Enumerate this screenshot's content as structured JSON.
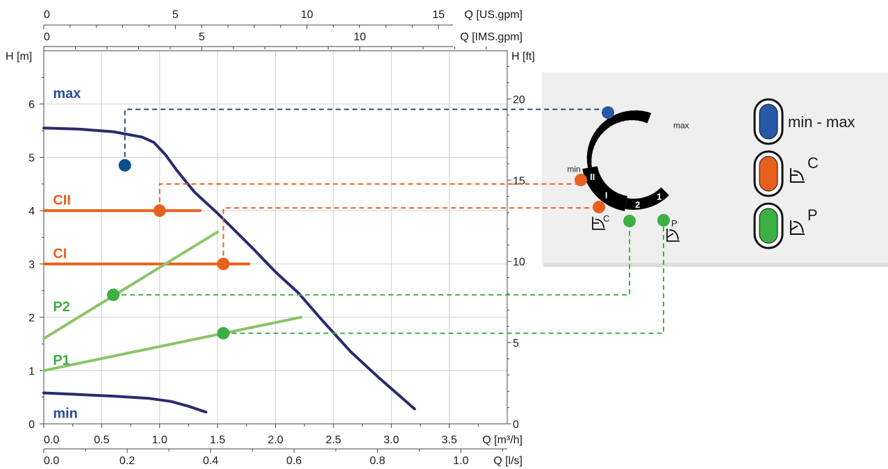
{
  "chart_data": {
    "type": "line",
    "axes": {
      "x_top1": {
        "label": "Q [US.gpm]",
        "ticks": [
          "0",
          "5",
          "10",
          "15"
        ]
      },
      "x_top2": {
        "label": "Q [IMS.gpm]",
        "ticks": [
          "0",
          "5",
          "10"
        ]
      },
      "x_bottom1": {
        "label": "Q [m³/h]",
        "ticks": [
          "0.0",
          "0.5",
          "1.0",
          "1.5",
          "2.0",
          "2.5",
          "3.0",
          "3.5"
        ],
        "range": [
          0,
          4
        ]
      },
      "x_bottom2": {
        "label": "Q [l/s]",
        "ticks": [
          "0.0",
          "0.2",
          "0.4",
          "0.6",
          "0.8",
          "1.0"
        ]
      },
      "y_left": {
        "label": "H [m]",
        "ticks": [
          "0",
          "1",
          "2",
          "3",
          "4",
          "5",
          "6"
        ],
        "range": [
          0,
          7
        ]
      },
      "y_right": {
        "label": "H [ft]",
        "ticks": [
          "0",
          "5",
          "10",
          "15",
          "20"
        ]
      }
    },
    "grid": true,
    "series": [
      {
        "name": "max",
        "color": "#2a2a6e",
        "x": [
          0,
          0.3,
          0.6,
          0.85,
          0.95,
          1.05,
          1.15,
          1.3,
          1.5,
          1.8,
          2.0,
          2.2,
          2.4,
          2.65,
          2.9,
          3.2
        ],
        "y": [
          5.55,
          5.53,
          5.48,
          5.38,
          5.28,
          5.05,
          4.75,
          4.35,
          3.95,
          3.3,
          2.85,
          2.45,
          1.95,
          1.35,
          0.85,
          0.28
        ]
      },
      {
        "name": "min",
        "color": "#2a2a6e",
        "x": [
          0,
          0.3,
          0.6,
          0.9,
          1.1,
          1.25,
          1.4
        ],
        "y": [
          0.58,
          0.55,
          0.52,
          0.48,
          0.42,
          0.33,
          0.22
        ]
      },
      {
        "name": "CII",
        "color": "#e8611c",
        "x": [
          0,
          1.35
        ],
        "y": [
          4.0,
          4.0
        ]
      },
      {
        "name": "CI",
        "color": "#e8611c",
        "x": [
          0,
          1.77
        ],
        "y": [
          3.0,
          3.0
        ]
      },
      {
        "name": "P2",
        "color": "#8cc46a",
        "x": [
          0,
          1.5
        ],
        "y": [
          1.6,
          3.6
        ]
      },
      {
        "name": "P1",
        "color": "#8cc46a",
        "x": [
          0,
          2.22
        ],
        "y": [
          1.0,
          2.0
        ]
      }
    ],
    "markers": [
      {
        "series": "max",
        "x": 0.7,
        "y": 4.85,
        "color": "#0d4f8b"
      },
      {
        "series": "CII",
        "x": 1.0,
        "y": 4.0,
        "color": "#e8611c"
      },
      {
        "series": "CI",
        "x": 1.55,
        "y": 3.0,
        "color": "#e8611c"
      },
      {
        "series": "P2",
        "x": 0.6,
        "y": 2.42,
        "color": "#3cb043"
      },
      {
        "series": "P1",
        "x": 1.55,
        "y": 1.7,
        "color": "#3cb043"
      }
    ],
    "dashes": [
      {
        "series": "max",
        "x0": 0.7,
        "y0": 4.85,
        "yLevel": 5.9,
        "color": "#1f4e79"
      },
      {
        "series": "CII",
        "x0": 1.0,
        "y0": 4.0,
        "yLevel": 4.5,
        "color": "#e8611c"
      },
      {
        "series": "CI",
        "x0": 1.55,
        "y0": 3.0,
        "yLevel": 4.05,
        "color": "#e8611c"
      },
      {
        "series": "P2",
        "x0": 0.6,
        "y0": 2.42,
        "color": "#3cb043"
      },
      {
        "series": "P1",
        "x0": 1.55,
        "y0": 1.7,
        "color": "#3cb043"
      }
    ],
    "series_labels": [
      {
        "text": "max",
        "x": 0.05,
        "y": 6.15,
        "color": "#2a4a9a"
      },
      {
        "text": "CII",
        "x": 0.05,
        "y": 4.15,
        "color": "#e8611c"
      },
      {
        "text": "CI",
        "x": 0.05,
        "y": 3.15,
        "color": "#e8611c"
      },
      {
        "text": "P2",
        "x": 0.05,
        "y": 2.15,
        "color": "#3cb043"
      },
      {
        "text": "P1",
        "x": 0.05,
        "y": 1.15,
        "color": "#3cb043"
      },
      {
        "text": "min",
        "x": 0.05,
        "y": 0.15,
        "color": "#2a4a9a"
      }
    ]
  },
  "dial": {
    "labels": {
      "max": "max",
      "min": "min",
      "ii": "II",
      "i_c": "I",
      "two": "2",
      "one": "1"
    },
    "marker_colors": {
      "max": "#2a58a8",
      "c2": "#e8611c",
      "c1": "#e8611c",
      "p2": "#3cb043",
      "p1": "#3cb043"
    }
  },
  "legend": {
    "items": [
      {
        "label": "min - max",
        "color": "#2a58a8"
      },
      {
        "label": "C",
        "color": "#e8611c",
        "icon": "constant-pressure-icon"
      },
      {
        "label": "P",
        "color": "#3cb043",
        "icon": "proportional-pressure-icon"
      }
    ]
  }
}
